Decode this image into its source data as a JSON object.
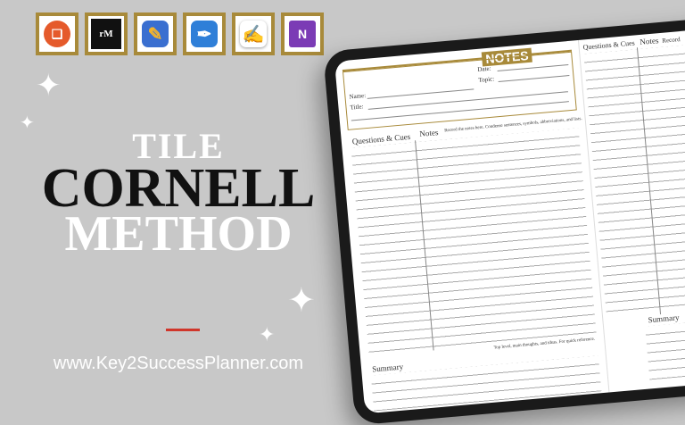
{
  "apps": [
    {
      "name": "noteshelf",
      "color": "#e55a2b",
      "glyph": "❏"
    },
    {
      "name": "remarkable",
      "color": "#111111",
      "glyph": "rM"
    },
    {
      "name": "goodnotes",
      "color": "#3a6fd0",
      "glyph": "✎"
    },
    {
      "name": "notability",
      "color": "#2f7fd8",
      "glyph": "✒"
    },
    {
      "name": "penultimate",
      "color": "#ffffff",
      "glyph": "✍"
    },
    {
      "name": "onenote",
      "color": "#7b3bb5",
      "glyph": "N"
    }
  ],
  "title": {
    "line1": "TILE",
    "line2": "CORNELL",
    "line3": "METHOD"
  },
  "url": "www.Key2SuccessPlanner.com",
  "accent": "#a88a3a",
  "template": {
    "heading": "NOTES",
    "date_label": "Date:",
    "topic_label": "Topic:",
    "name_label": "Name:",
    "title_label": "Title:",
    "questions_label": "Questions & Cues",
    "notes_label": "Notes",
    "notes_hint": "Record the notes here. Condense sentences, symbols, abbreviations, and lists.",
    "summary_label": "Summary",
    "summary_hint": "Top level, main thoughts, and ideas. For quick reference.",
    "right_notes_hint": "Record"
  }
}
